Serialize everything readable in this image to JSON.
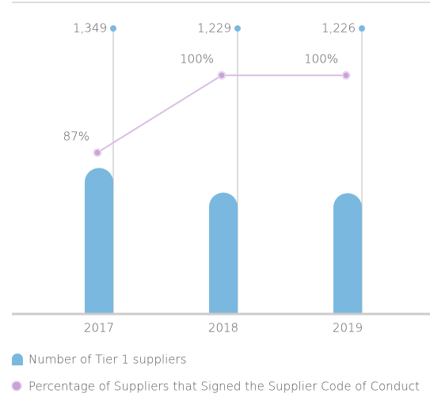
{
  "chart_data": {
    "type": "bar-line",
    "categories": [
      "2017",
      "2018",
      "2019"
    ],
    "series": [
      {
        "name": "Number of Tier 1 suppliers",
        "color": "#7ab8e0",
        "values": [
          1349,
          1229,
          1226
        ],
        "value_labels": [
          "1,349",
          "1,229",
          "1,226"
        ]
      },
      {
        "name": "Percentage of Suppliers that Signed the Supplier Code of Conduct",
        "color": "#d9bfe3",
        "marker_color": "#c9a3d8",
        "axis": "y2",
        "values": [
          87,
          100,
          100
        ],
        "value_labels": [
          "87%",
          "100%",
          "100%"
        ]
      }
    ],
    "ylim": [
      640,
      2150
    ],
    "y2lim": [
      60,
      112
    ]
  }
}
